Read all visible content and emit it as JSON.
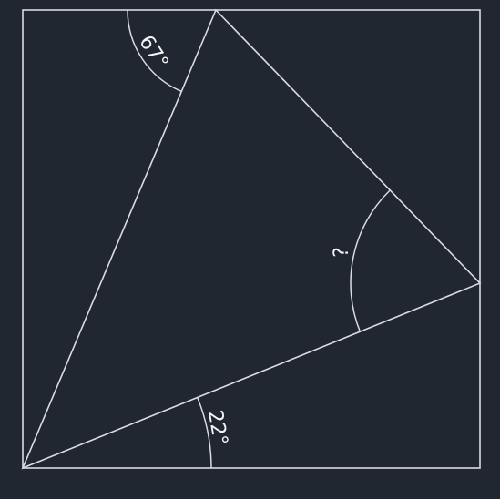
{
  "colors": {
    "background": "#202730",
    "stroke": "#d9dde2",
    "text": "#f2f4f6"
  },
  "labels": {
    "top_angle": "67°",
    "right_angle": "?",
    "bottom_angle": "22°"
  }
}
